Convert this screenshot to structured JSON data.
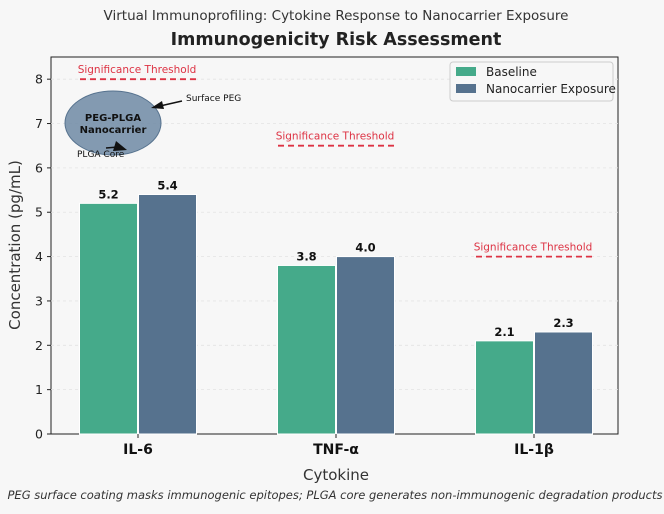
{
  "chart_data": {
    "type": "bar",
    "title": "Immunogenicity Risk Assessment",
    "subtitle": "Virtual Immunoprofiling: Cytokine Response to Nanocarrier Exposure",
    "xlabel": "Cytokine",
    "ylabel": "Concentration (pg/mL)",
    "caption": "PEG surface coating masks immunogenic epitopes; PLGA core generates non-immunogenic degradation products",
    "categories": [
      "IL-6",
      "TNF-α",
      "IL-1β"
    ],
    "ylim": [
      0,
      8.5
    ],
    "yticks": [
      0,
      1,
      2,
      3,
      4,
      5,
      6,
      7,
      8
    ],
    "grid": true,
    "legend_position": "top-right",
    "series": [
      {
        "name": "Baseline",
        "values": [
          5.2,
          3.8,
          2.1
        ],
        "labels": [
          "5.2",
          "3.8",
          "2.1"
        ],
        "color": "#45aa8a"
      },
      {
        "name": "Nanocarrier Exposure",
        "values": [
          5.4,
          4.0,
          2.3
        ],
        "labels": [
          "5.4",
          "4.0",
          "2.3"
        ],
        "color": "#56728e"
      }
    ],
    "thresholds": [
      {
        "label": "Significance Threshold",
        "value": 8.0,
        "category": "IL-6"
      },
      {
        "label": "Significance Threshold",
        "value": 6.5,
        "category": "TNF-α"
      },
      {
        "label": "Significance Threshold",
        "value": 4.0,
        "category": "IL-1β"
      }
    ],
    "threshold_color": "#dd3344",
    "inset": {
      "label_line1": "PEG-PLGA",
      "label_line2": "Nanocarrier",
      "annotation_surface": "Surface PEG",
      "annotation_core": "PLGA Core",
      "fill": "#6f8aa4"
    }
  }
}
